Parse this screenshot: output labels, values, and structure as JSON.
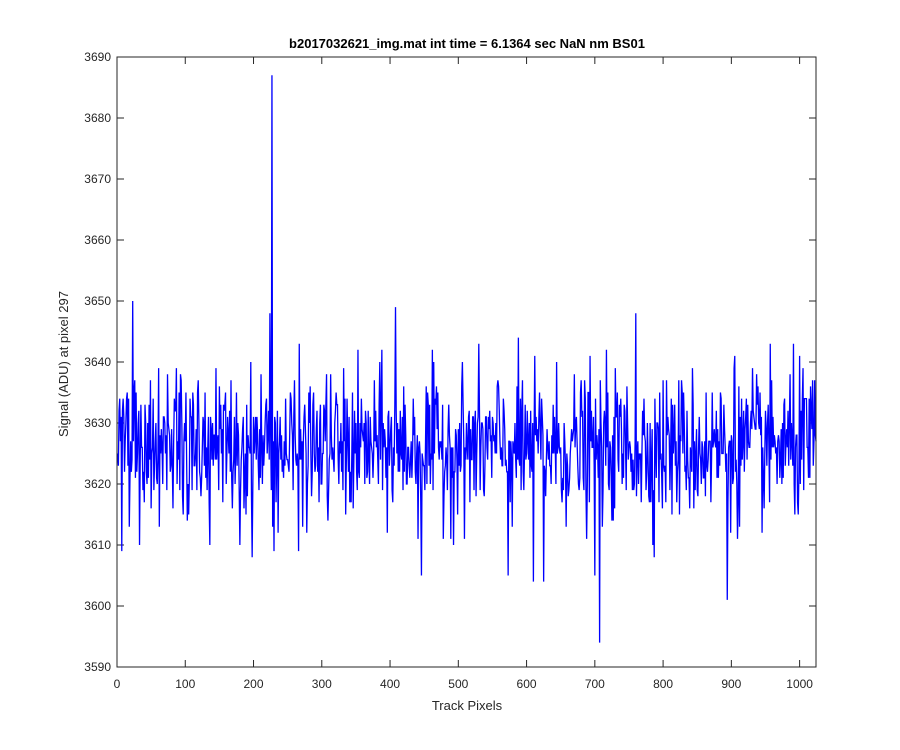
{
  "chart_data": {
    "type": "line",
    "title": "b2017032621_img.mat int time = 6.1364 sec  NaN nm BS01",
    "xlabel": "Track Pixels",
    "ylabel": "Signal (ADU) at pixel 297",
    "xlim": [
      0,
      1024
    ],
    "ylim": [
      3590,
      3690
    ],
    "xticks": [
      0,
      100,
      200,
      300,
      400,
      500,
      600,
      700,
      800,
      900,
      1000
    ],
    "yticks": [
      3590,
      3600,
      3610,
      3620,
      3630,
      3640,
      3650,
      3660,
      3670,
      3680,
      3690
    ],
    "grid": false,
    "legend": "none",
    "series": [
      {
        "color": "#0000ff",
        "baseline": 3626,
        "noise_sd": 6,
        "n_points": 1024,
        "x_start": 1,
        "features": [
          {
            "x": 227,
            "y": 3687
          },
          {
            "x": 224,
            "y": 3648
          },
          {
            "x": 230,
            "y": 3609
          },
          {
            "x": 23,
            "y": 3650
          },
          {
            "x": 33,
            "y": 3610
          },
          {
            "x": 136,
            "y": 3610
          },
          {
            "x": 180,
            "y": 3610
          },
          {
            "x": 266,
            "y": 3609
          },
          {
            "x": 408,
            "y": 3649
          },
          {
            "x": 446,
            "y": 3605
          },
          {
            "x": 573,
            "y": 3605
          },
          {
            "x": 610,
            "y": 3604
          },
          {
            "x": 625,
            "y": 3604
          },
          {
            "x": 707,
            "y": 3594
          },
          {
            "x": 700,
            "y": 3605
          },
          {
            "x": 760,
            "y": 3648
          },
          {
            "x": 894,
            "y": 3601
          },
          {
            "x": 905,
            "y": 3641
          },
          {
            "x": 1000,
            "y": 3641
          }
        ]
      }
    ]
  }
}
